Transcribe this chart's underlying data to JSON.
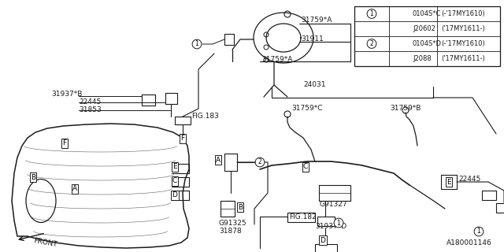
{
  "bg_color": "#ffffff",
  "line_color": "#1a1a1a",
  "fig_width": 6.4,
  "fig_height": 3.2,
  "dpi": 100,
  "watermark": "A180001146",
  "table_rows": [
    [
      "1",
      "0104S*C",
      "(-'17MY1610)"
    ],
    [
      "",
      "J20602",
      "('17MY1611-)"
    ],
    [
      "2",
      "0104S*D",
      "(-'17MY1610)"
    ],
    [
      "",
      "J2088",
      "('17MY1611-)"
    ]
  ]
}
